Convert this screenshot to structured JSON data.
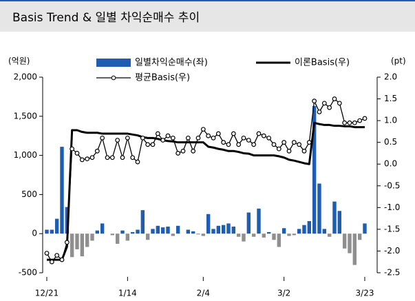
{
  "chart_data": {
    "type": "bar_line",
    "title": "Basis Trend  & 일별 차익순매수 추이",
    "y_label": "(억원)",
    "y2_label": "(pt)",
    "categories": [
      "12/21",
      null,
      null,
      null,
      null,
      null,
      null,
      null,
      null,
      null,
      null,
      null,
      null,
      null,
      null,
      null,
      "1/14",
      null,
      null,
      null,
      null,
      null,
      null,
      null,
      null,
      null,
      null,
      null,
      null,
      null,
      null,
      "2/4",
      null,
      null,
      null,
      null,
      null,
      null,
      null,
      null,
      null,
      null,
      null,
      null,
      null,
      null,
      null,
      "3/2",
      null,
      null,
      null,
      null,
      null,
      null,
      null,
      null,
      null,
      null,
      null,
      null,
      null,
      null,
      null,
      "3/23"
    ],
    "ylim": [
      -500,
      2000
    ],
    "yticks": [
      {
        "value": -500,
        "label": "-500"
      },
      0,
      500,
      {
        "value": 1000,
        "label": "1,000"
      },
      {
        "value": 1500,
        "label": "1,500"
      },
      {
        "value": 2000,
        "label": "2,000"
      }
    ],
    "y2lim": [
      -2.5,
      2.0
    ],
    "y2ticks": [
      {
        "value": -2.5,
        "label": "-2.5"
      },
      {
        "value": -2,
        "label": "-2.0"
      },
      -1.5,
      {
        "value": -1,
        "label": "-1.0"
      },
      -0.5,
      {
        "value": 0,
        "label": "0.0"
      },
      0.5,
      {
        "value": 1,
        "label": "1.0"
      },
      1.5,
      {
        "value": 2,
        "label": "2.0"
      }
    ],
    "legend": "top",
    "series": [
      {
        "name": "일별차익순매수(좌)",
        "kind": "bar",
        "color": "#1f5db0",
        "negative_color": "#8f8f8f",
        "axis": "y",
        "values": [
          50,
          50,
          190,
          1110,
          340,
          -300,
          -200,
          -290,
          -170,
          -90,
          40,
          130,
          0,
          -20,
          -130,
          40,
          -90,
          20,
          50,
          300,
          -80,
          60,
          100,
          80,
          90,
          -30,
          100,
          0,
          50,
          30,
          -10,
          -30,
          250,
          60,
          100,
          110,
          130,
          90,
          -40,
          -100,
          270,
          -40,
          320,
          -50,
          20,
          -80,
          -170,
          70,
          -30,
          -20,
          60,
          110,
          160,
          1630,
          640,
          60,
          -40,
          410,
          290,
          -190,
          -250,
          -400,
          -80,
          130
        ]
      },
      {
        "name": "이론Basis(우)",
        "kind": "line",
        "color": "#000000",
        "axis": "y2",
        "values": [
          -2.2,
          -2.2,
          -2.2,
          -2.2,
          -1.9,
          0.78,
          0.78,
          0.74,
          0.72,
          0.72,
          0.72,
          0.7,
          0.7,
          0.7,
          0.7,
          0.7,
          0.7,
          0.68,
          0.66,
          0.62,
          0.6,
          0.6,
          0.58,
          0.55,
          0.53,
          0.52,
          0.5,
          0.5,
          0.5,
          0.5,
          0.5,
          0.5,
          0.4,
          0.38,
          0.35,
          0.33,
          0.3,
          0.3,
          0.28,
          0.25,
          0.24,
          0.2,
          0.2,
          0.2,
          0.2,
          0.2,
          0.18,
          0.15,
          0.1,
          0.08,
          0.05,
          0.02,
          0.0,
          0.95,
          0.92,
          0.9,
          0.9,
          0.88,
          0.88,
          0.87,
          0.87,
          0.85,
          0.85,
          0.85
        ]
      },
      {
        "name": "평균Basis(우)",
        "kind": "line_marker",
        "color": "#000000",
        "axis": "y2",
        "values": [
          -2.05,
          -2.25,
          -2.1,
          -2.2,
          -1.8,
          0.35,
          0.25,
          0.1,
          0.12,
          0.15,
          0.3,
          0.6,
          0.15,
          0.15,
          0.55,
          0.15,
          0.6,
          0.15,
          0.05,
          0.6,
          0.45,
          0.45,
          0.7,
          0.55,
          0.65,
          0.6,
          0.25,
          0.3,
          0.6,
          0.3,
          0.6,
          0.8,
          0.65,
          0.6,
          0.7,
          0.5,
          0.45,
          0.7,
          0.45,
          0.6,
          0.55,
          0.45,
          0.7,
          0.65,
          0.6,
          0.45,
          0.35,
          0.5,
          0.3,
          0.5,
          0.45,
          0.3,
          0.5,
          1.45,
          1.2,
          1.4,
          1.3,
          1.5,
          1.4,
          0.95,
          0.95,
          0.95,
          1.0,
          1.05
        ]
      }
    ]
  }
}
